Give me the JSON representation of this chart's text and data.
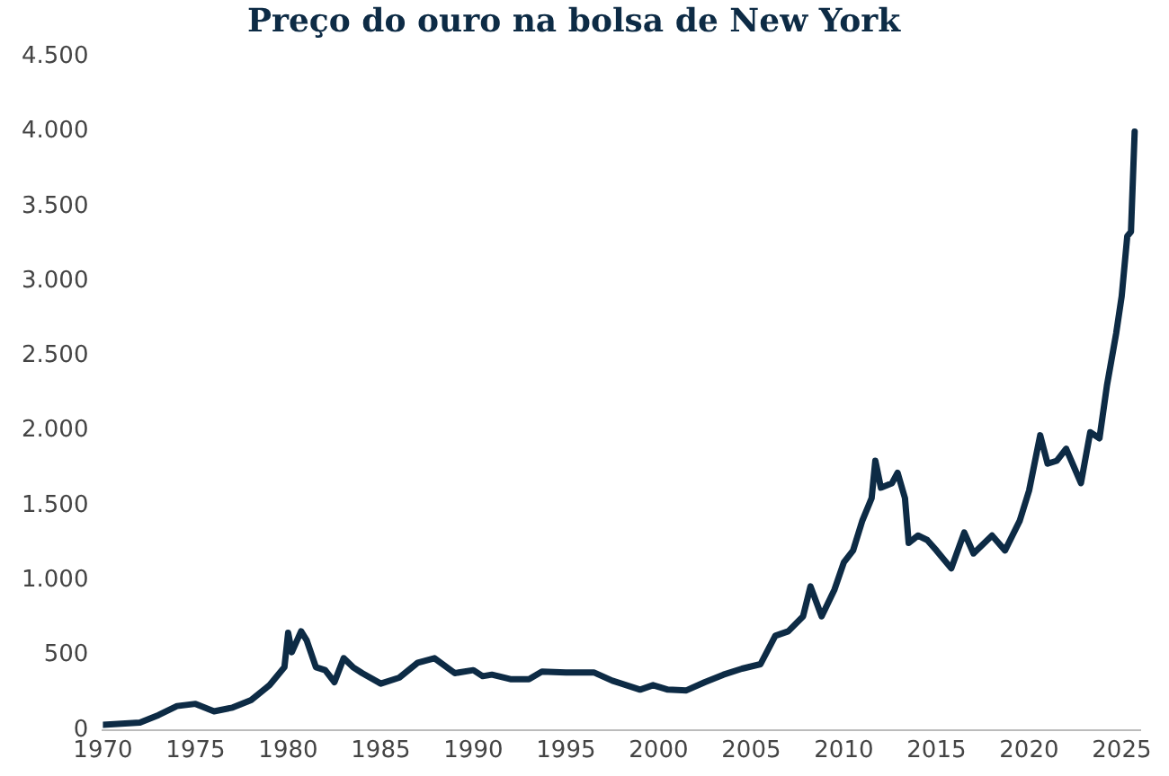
{
  "chart_data": {
    "type": "line",
    "title": "Preço do ouro na bolsa de New York",
    "x": [
      1970,
      1972,
      1973,
      1974,
      1975,
      1976,
      1977,
      1978,
      1979,
      1979.8,
      1980,
      1980.2,
      1980.7,
      1981,
      1981.5,
      1982,
      1982.5,
      1983,
      1983.5,
      1984,
      1985,
      1986,
      1987,
      1987.9,
      1989,
      1990,
      1990.5,
      1991,
      1992,
      1993,
      1993.7,
      1995,
      1996.5,
      1997.5,
      1999,
      1999.7,
      2000.5,
      2001.5,
      2002.5,
      2003.5,
      2004.5,
      2005.5,
      2006.3,
      2007,
      2007.8,
      2008.2,
      2008.8,
      2009.5,
      2010,
      2010.5,
      2011,
      2011.5,
      2011.7,
      2012,
      2012.6,
      2012.9,
      2013.3,
      2013.5,
      2014,
      2014.5,
      2015,
      2015.8,
      2016.5,
      2017,
      2018,
      2018.7,
      2019.5,
      2020,
      2020.6,
      2021,
      2021.5,
      2022,
      2022.8,
      2023.3,
      2023.8,
      2024.2,
      2024.7,
      2025,
      2025.3,
      2025.5,
      2025.7
    ],
    "series": [
      {
        "color": "#0d2b45",
        "values": [
          35,
          50,
          100,
          160,
          175,
          125,
          150,
          200,
          300,
          420,
          650,
          520,
          660,
          600,
          420,
          400,
          320,
          480,
          420,
          380,
          310,
          350,
          450,
          480,
          380,
          400,
          360,
          370,
          340,
          340,
          390,
          385,
          385,
          330,
          270,
          300,
          270,
          265,
          320,
          370,
          410,
          440,
          630,
          660,
          760,
          960,
          760,
          940,
          1120,
          1200,
          1400,
          1550,
          1800,
          1620,
          1650,
          1720,
          1550,
          1250,
          1300,
          1270,
          1200,
          1080,
          1320,
          1180,
          1300,
          1200,
          1400,
          1600,
          1970,
          1780,
          1800,
          1880,
          1650,
          1990,
          1950,
          2300,
          2650,
          2900,
          3300,
          3330,
          4000
        ]
      }
    ],
    "xlim": [
      1970,
      2026
    ],
    "xticks": [
      {
        "value": 1970,
        "label": "1970"
      },
      {
        "value": 1975,
        "label": "1975"
      },
      {
        "value": 1980,
        "label": "1980"
      },
      {
        "value": 1985,
        "label": "1985"
      },
      {
        "value": 1990,
        "label": "1990"
      },
      {
        "value": 1995,
        "label": "1995"
      },
      {
        "value": 2000,
        "label": "2000"
      },
      {
        "value": 2005,
        "label": "2005"
      },
      {
        "value": 2010,
        "label": "2010"
      },
      {
        "value": 2015,
        "label": "2015"
      },
      {
        "value": 2020,
        "label": "2020"
      },
      {
        "value": 2025,
        "label": "2025"
      }
    ],
    "ylim": [
      0,
      4500
    ],
    "yticks": [
      0,
      500,
      {
        "value": 1000,
        "label": "1.000"
      },
      {
        "value": 1500,
        "label": "1.500"
      },
      {
        "value": 2000,
        "label": "2.000"
      },
      {
        "value": 2500,
        "label": "2.500"
      },
      {
        "value": 3000,
        "label": "3.000"
      },
      {
        "value": 3500,
        "label": "3.500"
      },
      {
        "value": 4000,
        "label": "4.000"
      },
      {
        "value": 4500,
        "label": "4.500"
      }
    ],
    "grid": false,
    "legend": false,
    "marker": "none",
    "line_style": "solid"
  }
}
